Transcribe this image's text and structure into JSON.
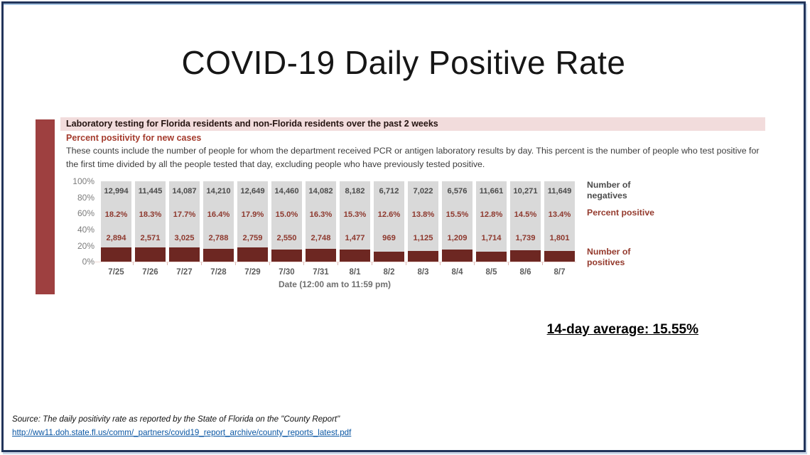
{
  "slide": {
    "title": "COVID-19 Daily Positive Rate",
    "average_label": "14-day average: 15.55%"
  },
  "report": {
    "header": "Laboratory testing for Florida residents and non-Florida residents over the past 2 weeks",
    "subheader": "Percent positivity for new cases",
    "description": "These counts include the number of people for whom the department received PCR or antigen laboratory results by day. This percent is the number of people who test positive for the first time divided by all the people tested that day, excluding people who have previously tested positive."
  },
  "chart_data": {
    "type": "bar",
    "title": "Percent positivity for new cases",
    "xlabel": "Date (12:00 am to 11:59 pm)",
    "ylabel": "",
    "ylim": [
      0,
      100
    ],
    "y_ticks": [
      "100%",
      "80%",
      "60%",
      "40%",
      "20%",
      "0%"
    ],
    "grid": false,
    "legend_position": "right",
    "categories": [
      "7/25",
      "7/26",
      "7/27",
      "7/28",
      "7/29",
      "7/30",
      "7/31",
      "8/1",
      "8/2",
      "8/3",
      "8/4",
      "8/5",
      "8/6",
      "8/7"
    ],
    "series": [
      {
        "name": "Number of negatives",
        "values": [
          12994,
          11445,
          14087,
          14210,
          12649,
          14460,
          14082,
          8182,
          6712,
          7022,
          6576,
          11661,
          10271,
          11649
        ]
      },
      {
        "name": "Percent positive",
        "values": [
          18.2,
          18.3,
          17.7,
          16.4,
          17.9,
          15.0,
          16.3,
          15.3,
          12.6,
          13.8,
          15.5,
          12.8,
          14.5,
          13.4
        ]
      },
      {
        "name": "Number of positives",
        "values": [
          2894,
          2571,
          3025,
          2788,
          2759,
          2550,
          2748,
          1477,
          969,
          1125,
          1209,
          1714,
          1739,
          1801
        ]
      }
    ],
    "legend": [
      "Number of negatives",
      "Percent positive",
      "Number of positives"
    ],
    "colors": {
      "bar_background": "#d9d9d9",
      "bar_fill": "#6d2722",
      "negatives_label": "#4c4c4c",
      "positive_label": "#8e392e",
      "accent_bar": "#9e4040",
      "header_strip": "#f2dcdc"
    }
  },
  "footer": {
    "source": "Source: The daily positivity rate as reported by the State of Florida on the \"County Report\"",
    "link": "http://ww11.doh.state.fl.us/comm/_partners/covid19_report_archive/county_reports_latest.pdf"
  }
}
